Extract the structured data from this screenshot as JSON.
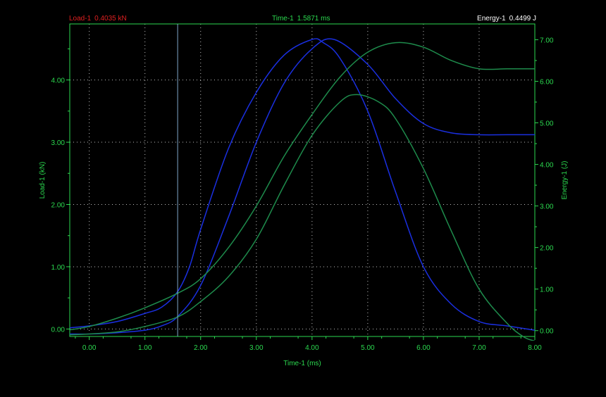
{
  "readouts": {
    "load": {
      "label": "Load-1",
      "value": "0.4035 kN",
      "color": "#e02020"
    },
    "time": {
      "label": "Time-1",
      "value": "1.5871 ms",
      "color": "#2bd94f"
    },
    "energy": {
      "label": "Energy-1",
      "value": "0.4499 J",
      "color": "#ffffff"
    }
  },
  "chart_data": {
    "type": "line",
    "background": "#000000",
    "axis_color": "#2bd94f",
    "grid": "dotted",
    "xlabel": "Time-1 (ms)",
    "ylabel": "Load-1 (kN)",
    "y2label": "Energy-1 (J)",
    "xlim": [
      -0.35,
      8.0
    ],
    "ylim": [
      -0.12,
      4.9
    ],
    "y2lim": [
      -0.14,
      7.38
    ],
    "x_ticks": [
      "0.00",
      "1.00",
      "2.00",
      "3.00",
      "4.00",
      "5.00",
      "6.00",
      "7.00",
      "8.00"
    ],
    "y_ticks": [
      "0.00",
      "1.00",
      "2.00",
      "3.00",
      "4.00"
    ],
    "y2_ticks": [
      "0.00",
      "1.00",
      "2.00",
      "3.00",
      "4.00",
      "5.00",
      "6.00",
      "7.00"
    ],
    "cursor": {
      "x": 1.5871,
      "color": "#7fa6c9"
    },
    "series": [
      {
        "axis": "left",
        "color": "#1a2fe0",
        "x": [
          -0.35,
          0,
          0.5,
          1.0,
          1.3,
          1.587,
          1.8,
          2.0,
          2.5,
          3.0,
          3.5,
          4.0,
          4.2,
          4.5,
          5.0,
          5.5,
          6.0,
          6.5,
          7.0,
          7.5,
          8.0
        ],
        "y": [
          0.02,
          0.05,
          0.12,
          0.25,
          0.35,
          0.6,
          1.0,
          1.6,
          2.9,
          3.8,
          4.4,
          4.65,
          4.6,
          4.35,
          3.5,
          2.2,
          1.0,
          0.4,
          0.12,
          0.05,
          -0.02
        ]
      },
      {
        "axis": "left",
        "color": "#1a2fe0",
        "x": [
          -0.35,
          0,
          0.5,
          1.0,
          1.3,
          1.587,
          2.0,
          2.5,
          3.0,
          3.5,
          4.0,
          4.4,
          5.0,
          5.5,
          6.0,
          6.5,
          7.0,
          7.5,
          8.0
        ],
        "y": [
          -0.08,
          -0.08,
          -0.06,
          -0.02,
          0.05,
          0.2,
          0.7,
          1.8,
          3.0,
          3.95,
          4.5,
          4.65,
          4.25,
          3.7,
          3.3,
          3.15,
          3.12,
          3.12,
          3.12
        ]
      },
      {
        "axis": "right",
        "color": "#1e8c4c",
        "x": [
          -0.35,
          0,
          0.5,
          1.0,
          1.587,
          2.0,
          2.5,
          3.0,
          3.5,
          4.0,
          4.5,
          5.0,
          5.5,
          6.0,
          6.5,
          7.0,
          7.5,
          8.0
        ],
        "y": [
          0.02,
          0.1,
          0.3,
          0.55,
          0.9,
          1.25,
          2.0,
          3.0,
          4.2,
          5.2,
          6.1,
          6.7,
          6.93,
          6.82,
          6.5,
          6.3,
          6.3,
          6.3
        ]
      },
      {
        "axis": "right",
        "color": "#1e8c4c",
        "x": [
          -0.35,
          0,
          0.5,
          1.0,
          1.587,
          2.0,
          2.5,
          3.0,
          3.5,
          4.0,
          4.5,
          4.8,
          5.2,
          5.5,
          6.0,
          6.5,
          7.0,
          7.5,
          7.8,
          8.0
        ],
        "y": [
          -0.1,
          -0.08,
          -0.03,
          0.1,
          0.33,
          0.7,
          1.3,
          2.2,
          3.5,
          4.7,
          5.5,
          5.68,
          5.5,
          5.1,
          3.9,
          2.4,
          1.0,
          0.18,
          -0.15,
          -0.25
        ]
      }
    ]
  }
}
